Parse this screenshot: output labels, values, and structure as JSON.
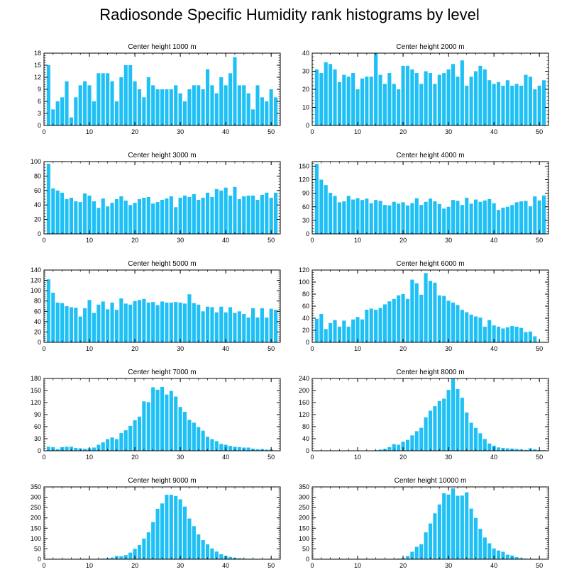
{
  "figure_title": "Radiosonde Specific Humidity rank histograms by level",
  "colors": {
    "bar": "#1ec0f5",
    "axis": "#000000",
    "background": "#ffffff"
  },
  "chart_data": [
    {
      "type": "bar",
      "title": "Center height 1000 m",
      "ylim": [
        0,
        18
      ],
      "yticks": [
        0,
        3,
        6,
        9,
        12,
        15,
        18
      ],
      "xlim": [
        0,
        52
      ],
      "xticks": [
        0,
        10,
        20,
        30,
        40,
        50
      ],
      "values": [
        15,
        4,
        6,
        7,
        11,
        2,
        7,
        10,
        11,
        10,
        6,
        13,
        13,
        13,
        11,
        6,
        12,
        15,
        15,
        11,
        9,
        7,
        12,
        10,
        9,
        9,
        9,
        9,
        10,
        8,
        6,
        9,
        10,
        10,
        9,
        14,
        10,
        8,
        12,
        10,
        13,
        17,
        10,
        10,
        8,
        4,
        10,
        7,
        6,
        9,
        7,
        10
      ]
    },
    {
      "type": "bar",
      "title": "Center height 2000 m",
      "ylim": [
        0,
        40
      ],
      "yticks": [
        0,
        10,
        20,
        30,
        40
      ],
      "xlim": [
        0,
        52
      ],
      "xticks": [
        0,
        10,
        20,
        30,
        40,
        50
      ],
      "values": [
        31,
        29,
        35,
        34,
        31,
        24,
        28,
        27,
        29,
        20,
        26,
        27,
        27,
        40,
        28,
        23,
        29,
        23,
        20,
        33,
        33,
        31,
        29,
        23,
        30,
        29,
        23,
        28,
        29,
        31,
        34,
        27,
        36,
        22,
        27,
        30,
        33,
        31,
        25,
        23,
        24,
        22,
        25,
        22,
        23,
        22,
        28,
        27,
        20,
        22,
        25,
        32,
        37
      ]
    },
    {
      "type": "bar",
      "title": "Center height 3000 m",
      "ylim": [
        0,
        100
      ],
      "yticks": [
        0,
        20,
        40,
        60,
        80,
        100
      ],
      "xlim": [
        0,
        52
      ],
      "xticks": [
        0,
        10,
        20,
        30,
        40,
        50
      ],
      "values": [
        97,
        63,
        60,
        57,
        48,
        50,
        45,
        44,
        56,
        53,
        45,
        36,
        49,
        38,
        43,
        48,
        52,
        46,
        40,
        43,
        48,
        50,
        51,
        42,
        44,
        47,
        49,
        52,
        37,
        50,
        53,
        51,
        55,
        47,
        50,
        57,
        51,
        62,
        60,
        64,
        53,
        65,
        48,
        52,
        53,
        53,
        47,
        54,
        57,
        50,
        57,
        52,
        75
      ]
    },
    {
      "type": "bar",
      "title": "Center height 4000 m",
      "ylim": [
        0,
        160
      ],
      "yticks": [
        0,
        30,
        60,
        90,
        120,
        150
      ],
      "xlim": [
        0,
        52
      ],
      "xticks": [
        0,
        10,
        20,
        30,
        40,
        50
      ],
      "values": [
        155,
        120,
        108,
        91,
        84,
        70,
        72,
        84,
        76,
        79,
        75,
        78,
        68,
        75,
        73,
        64,
        63,
        71,
        67,
        70,
        63,
        68,
        79,
        64,
        71,
        78,
        72,
        66,
        56,
        60,
        75,
        73,
        64,
        80,
        67,
        76,
        71,
        74,
        77,
        68,
        53,
        58,
        60,
        64,
        70,
        72,
        73,
        61,
        83,
        74,
        85,
        86
      ]
    },
    {
      "type": "bar",
      "title": "Center height 5000 m",
      "ylim": [
        0,
        140
      ],
      "yticks": [
        0,
        20,
        40,
        60,
        80,
        100,
        120,
        140
      ],
      "xlim": [
        0,
        52
      ],
      "xticks": [
        0,
        10,
        20,
        30,
        40,
        50
      ],
      "values": [
        122,
        96,
        77,
        76,
        70,
        68,
        67,
        50,
        66,
        82,
        57,
        73,
        79,
        64,
        77,
        63,
        85,
        75,
        73,
        80,
        82,
        84,
        77,
        78,
        72,
        79,
        77,
        77,
        78,
        77,
        75,
        93,
        76,
        73,
        60,
        69,
        68,
        58,
        69,
        58,
        68,
        57,
        60,
        55,
        48,
        66,
        48,
        66,
        48,
        65,
        63,
        47,
        44
      ]
    },
    {
      "type": "bar",
      "title": "Center height 6000 m",
      "ylim": [
        0,
        120
      ],
      "yticks": [
        0,
        20,
        40,
        60,
        80,
        100,
        120
      ],
      "xlim": [
        0,
        52
      ],
      "xticks": [
        0,
        10,
        20,
        30,
        40,
        50
      ],
      "values": [
        39,
        47,
        22,
        32,
        37,
        26,
        36,
        26,
        38,
        42,
        38,
        54,
        56,
        54,
        57,
        63,
        68,
        72,
        78,
        80,
        72,
        104,
        98,
        79,
        115,
        102,
        99,
        78,
        77,
        69,
        66,
        62,
        54,
        50,
        46,
        43,
        41,
        26,
        37,
        28,
        26,
        23,
        25,
        27,
        26,
        24,
        17,
        18,
        10
      ]
    },
    {
      "type": "bar",
      "title": "Center height 7000 m",
      "ylim": [
        0,
        180
      ],
      "yticks": [
        0,
        30,
        60,
        90,
        120,
        150,
        180
      ],
      "xlim": [
        0,
        52
      ],
      "xticks": [
        0,
        10,
        20,
        30,
        40,
        50
      ],
      "values": [
        10,
        9,
        4,
        9,
        10,
        10,
        7,
        6,
        5,
        6,
        8,
        15,
        21,
        29,
        33,
        29,
        44,
        51,
        62,
        76,
        85,
        123,
        121,
        158,
        152,
        159,
        140,
        149,
        135,
        109,
        97,
        77,
        70,
        59,
        50,
        35,
        29,
        24,
        17,
        15,
        12,
        10,
        9,
        8,
        8,
        5,
        4,
        4,
        3,
        3
      ]
    },
    {
      "type": "bar",
      "title": "Center height 8000 m",
      "ylim": [
        0,
        240
      ],
      "yticks": [
        0,
        40,
        80,
        120,
        160,
        200,
        240
      ],
      "xlim": [
        0,
        52
      ],
      "xticks": [
        0,
        10,
        20,
        30,
        40,
        50
      ],
      "values": [
        0,
        0,
        0,
        0,
        0,
        0,
        0,
        0,
        0,
        0,
        0,
        0,
        0,
        2,
        4,
        6,
        12,
        22,
        20,
        30,
        36,
        51,
        65,
        76,
        111,
        133,
        148,
        165,
        173,
        202,
        239,
        205,
        176,
        127,
        93,
        76,
        58,
        39,
        24,
        17,
        11,
        9,
        8,
        7,
        6,
        4,
        3,
        8,
        5,
        2,
        2,
        1,
        1
      ]
    },
    {
      "type": "bar",
      "title": "Center height 9000 m",
      "ylim": [
        0,
        350
      ],
      "yticks": [
        0,
        50,
        100,
        150,
        200,
        250,
        300,
        350
      ],
      "xlim": [
        0,
        52
      ],
      "xticks": [
        0,
        10,
        20,
        30,
        40,
        50
      ],
      "values": [
        0,
        0,
        0,
        0,
        0,
        0,
        0,
        0,
        0,
        0,
        1,
        2,
        3,
        5,
        8,
        15,
        14,
        20,
        32,
        50,
        69,
        100,
        130,
        180,
        244,
        270,
        312,
        312,
        306,
        290,
        255,
        197,
        160,
        120,
        93,
        72,
        52,
        37,
        24,
        16,
        11,
        7,
        5,
        3,
        2,
        2,
        1,
        1,
        1,
        0,
        0,
        0,
        0
      ]
    },
    {
      "type": "bar",
      "title": "Center height 10000 m",
      "ylim": [
        0,
        350
      ],
      "yticks": [
        0,
        50,
        100,
        150,
        200,
        250,
        300,
        350
      ],
      "xlim": [
        0,
        52
      ],
      "xticks": [
        0,
        10,
        20,
        30,
        40,
        50
      ],
      "values": [
        0,
        0,
        0,
        0,
        0,
        0,
        0,
        0,
        0,
        0,
        0,
        0,
        0,
        0,
        0,
        0,
        0,
        1,
        3,
        6,
        15,
        36,
        60,
        72,
        130,
        173,
        222,
        265,
        319,
        313,
        343,
        307,
        308,
        324,
        245,
        200,
        147,
        105,
        77,
        52,
        42,
        36,
        22,
        18,
        10,
        5,
        3,
        2,
        1,
        0,
        0,
        0,
        0
      ]
    }
  ]
}
